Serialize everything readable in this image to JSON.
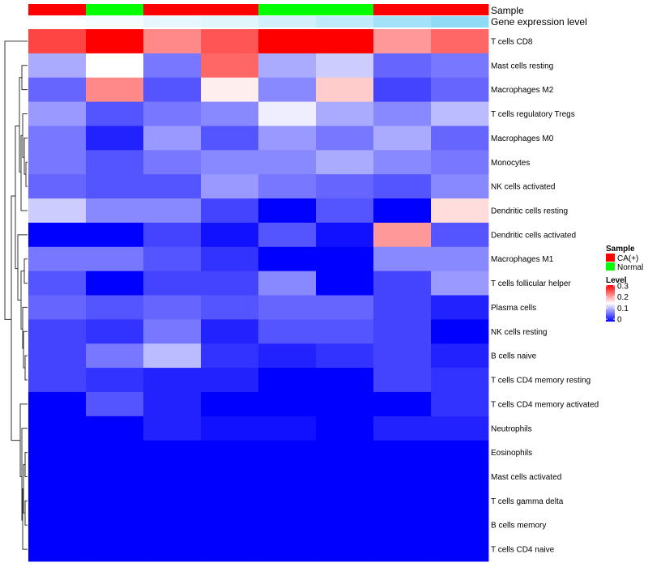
{
  "chart_data": {
    "type": "heatmap",
    "annotation_tracks": [
      {
        "name": "Sample",
        "values": [
          "CA(+)",
          "Normal",
          "CA(+)",
          "CA(+)",
          "Normal",
          "Normal",
          "CA(+)",
          "CA(+)"
        ]
      },
      {
        "name": "Gene expression level",
        "values": [
          0.02,
          0.06,
          0.14,
          0.18,
          0.27,
          0.38,
          0.55,
          0.66
        ]
      }
    ],
    "rows": [
      "T cells CD8",
      "Mast cells resting",
      "Macrophages M2",
      "T cells regulatory  Tregs",
      "Macrophages M0",
      "Monocytes",
      "NK cells activated",
      "Dendritic cells resting",
      "Dendritic cells activated",
      "Macrophages M1",
      "T cells follicular helper",
      "Plasma cells",
      "NK cells resting",
      "B cells naive",
      "T cells CD4 memory resting",
      "T cells CD4 memory activated",
      "Neutrophils",
      "Eosinophils",
      "Mast cells activated",
      "T cells gamma delta",
      "B cells memory",
      "T cells CD4 naive"
    ],
    "values": [
      [
        0.26,
        0.3,
        0.22,
        0.25,
        0.3,
        0.3,
        0.21,
        0.24
      ],
      [
        0.1,
        0.15,
        0.07,
        0.24,
        0.1,
        0.12,
        0.06,
        0.07
      ],
      [
        0.06,
        0.22,
        0.05,
        0.16,
        0.08,
        0.18,
        0.04,
        0.06
      ],
      [
        0.09,
        0.05,
        0.07,
        0.08,
        0.14,
        0.1,
        0.08,
        0.11
      ],
      [
        0.07,
        0.02,
        0.09,
        0.05,
        0.09,
        0.07,
        0.1,
        0.06
      ],
      [
        0.07,
        0.05,
        0.07,
        0.08,
        0.08,
        0.1,
        0.08,
        0.07
      ],
      [
        0.06,
        0.05,
        0.05,
        0.09,
        0.07,
        0.06,
        0.05,
        0.08
      ],
      [
        0.12,
        0.08,
        0.08,
        0.04,
        0.0,
        0.05,
        0.0,
        0.17
      ],
      [
        0.0,
        0.0,
        0.04,
        0.01,
        0.05,
        0.01,
        0.21,
        0.05
      ],
      [
        0.07,
        0.07,
        0.05,
        0.03,
        0.0,
        0.0,
        0.08,
        0.08
      ],
      [
        0.05,
        0.0,
        0.04,
        0.04,
        0.08,
        0.0,
        0.04,
        0.09
      ],
      [
        0.06,
        0.05,
        0.06,
        0.05,
        0.06,
        0.06,
        0.04,
        0.02
      ],
      [
        0.04,
        0.03,
        0.07,
        0.02,
        0.05,
        0.05,
        0.04,
        0.0
      ],
      [
        0.04,
        0.07,
        0.11,
        0.03,
        0.02,
        0.03,
        0.04,
        0.02
      ],
      [
        0.04,
        0.03,
        0.02,
        0.02,
        0.0,
        0.0,
        0.04,
        0.03
      ],
      [
        0.0,
        0.05,
        0.02,
        0.0,
        0.0,
        0.0,
        0.0,
        0.03
      ],
      [
        0.0,
        0.0,
        0.02,
        0.01,
        0.01,
        0.0,
        0.02,
        0.02
      ],
      [
        0.0,
        0.0,
        0.0,
        0.0,
        0.0,
        0.0,
        0.0,
        0.0
      ],
      [
        0.0,
        0.0,
        0.0,
        0.0,
        0.0,
        0.0,
        0.0,
        0.0
      ],
      [
        0.0,
        0.0,
        0.0,
        0.0,
        0.0,
        0.0,
        0.0,
        0.0
      ],
      [
        0.0,
        0.0,
        0.0,
        0.0,
        0.0,
        0.0,
        0.0,
        0.0
      ],
      [
        0.0,
        0.0,
        0.0,
        0.0,
        0.0,
        0.0,
        0.0,
        0.0
      ]
    ],
    "color_scale": {
      "min": 0,
      "mid": 0.15,
      "max": 0.3,
      "low": "#0000ff",
      "mid_color": "#ffffff",
      "high": "#ff0000"
    },
    "legend": {
      "position": "right",
      "sample_title": "Sample",
      "sample_entries": [
        {
          "label": "CA(+)",
          "color": "#ff0000"
        },
        {
          "label": "Normal",
          "color": "#00ff00"
        }
      ],
      "level_title": "Level",
      "level_ticks": [
        {
          "label": "0.3",
          "value": 0.3
        },
        {
          "label": "0.2",
          "value": 0.2
        },
        {
          "label": "0.1",
          "value": 0.1
        },
        {
          "label": "0",
          "value": 0
        }
      ]
    },
    "expression_track_colors": {
      "low": "#ffffff",
      "high": "#56c8f0"
    },
    "row_dendrogram": true
  }
}
